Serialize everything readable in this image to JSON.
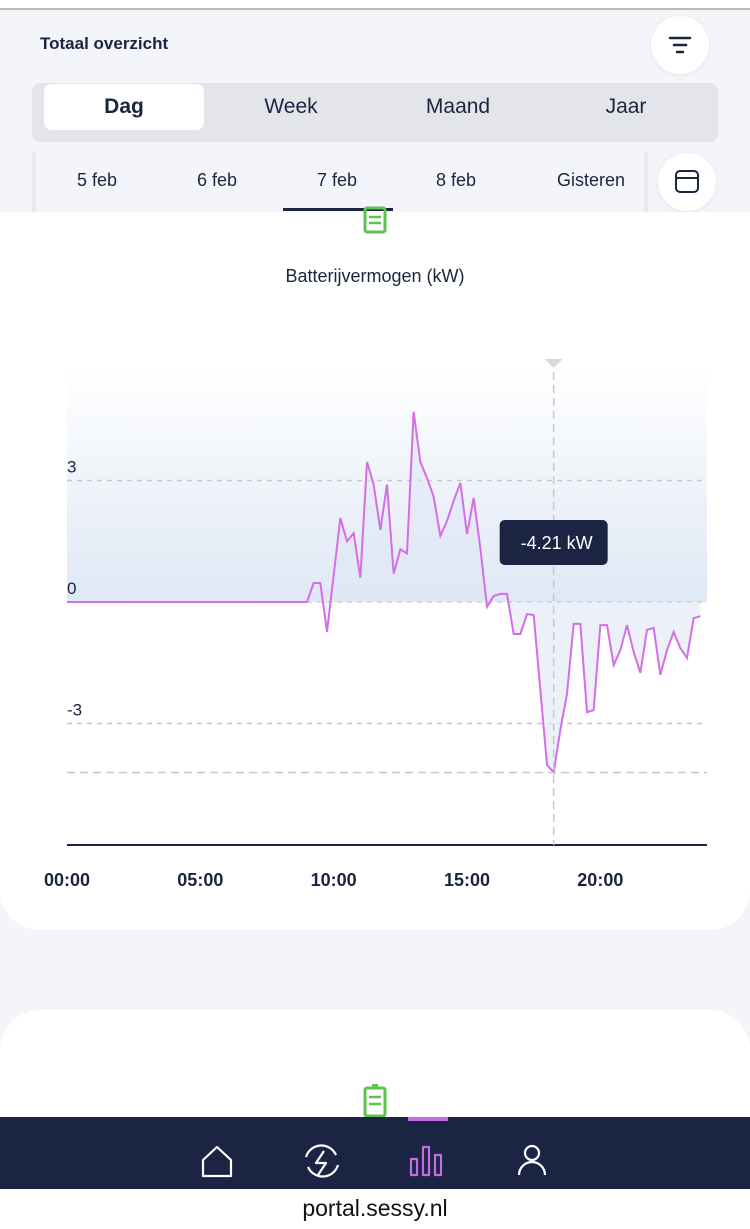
{
  "header": {
    "title": "Totaal overzicht"
  },
  "period_tabs": [
    "Dag",
    "Week",
    "Maand",
    "Jaar"
  ],
  "dates": [
    "5 feb",
    "6 feb",
    "7 feb",
    "8 feb",
    "Gisteren"
  ],
  "chart_data": {
    "type": "line",
    "title": "Batterijvermogen (kW)",
    "x": [
      0,
      9,
      9.25,
      9.5,
      9.75,
      10.25,
      10.5,
      10.75,
      11,
      11.25,
      11.5,
      11.75,
      12,
      12.25,
      12.5,
      12.75,
      13,
      13.25,
      13.5,
      13.75,
      14,
      14.25,
      14.5,
      14.75,
      15,
      15.25,
      15.5,
      15.75,
      16,
      16.25,
      16.5,
      16.75,
      17,
      17.25,
      17.5,
      17.75,
      18,
      18.25,
      18.5,
      18.75,
      19,
      19.25,
      19.5,
      19.75,
      20,
      20.25,
      20.5,
      20.75,
      21,
      21.25,
      21.5,
      21.75,
      22,
      22.25,
      22.5,
      22.75,
      23,
      23.25,
      23.5,
      23.75
    ],
    "series": [
      {
        "name": "Batterijvermogen",
        "color": "#d46ee6",
        "values": [
          0,
          0,
          0.47,
          0.47,
          -0.74,
          2.07,
          1.5,
          1.7,
          0.6,
          3.46,
          2.9,
          1.78,
          2.9,
          0.7,
          1.3,
          1.2,
          4.7,
          3.46,
          3.06,
          2.6,
          1.63,
          2.0,
          2.5,
          2.94,
          1.68,
          2.57,
          1.33,
          -0.12,
          0.15,
          0.2,
          0.2,
          -0.79,
          -0.79,
          -0.3,
          -0.32,
          -2.17,
          -4.02,
          -4.21,
          -3.16,
          -2.27,
          -0.54,
          -0.54,
          -2.72,
          -2.67,
          -0.57,
          -0.57,
          -1.56,
          -1.19,
          -0.57,
          -1.23,
          -1.75,
          -0.69,
          -0.64,
          -1.8,
          -1.19,
          -0.74,
          -1.14,
          -1.38,
          -0.4,
          -0.35
        ]
      }
    ],
    "xlim": [
      0,
      24
    ],
    "xticks": [
      {
        "value": 0,
        "label": "00:00"
      },
      {
        "value": 5,
        "label": "05:00"
      },
      {
        "value": 10,
        "label": "10:00"
      },
      {
        "value": 15,
        "label": "15:00"
      },
      {
        "value": 20,
        "label": "20:00"
      }
    ],
    "ylim": [
      -6,
      6
    ],
    "yticks": [
      3,
      0,
      -3
    ],
    "grid": true,
    "tooltip": {
      "x": 18.25,
      "value": -4.21,
      "label": "-4.21 kW"
    }
  }
}
